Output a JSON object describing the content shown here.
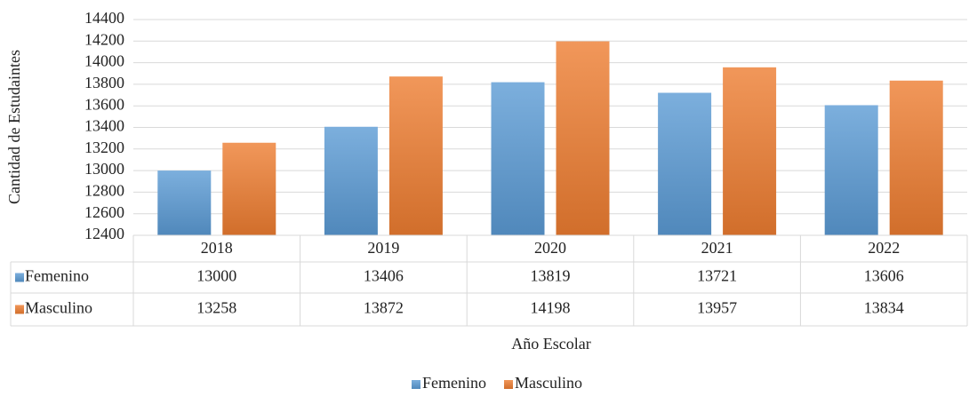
{
  "chart_data": {
    "type": "bar",
    "y_label": "Cantidad de Estudaintes",
    "x_label": "Año Escolar",
    "categories": [
      "2018",
      "2019",
      "2020",
      "2021",
      "2022"
    ],
    "series": [
      {
        "name": "Femenino",
        "color": "#5b9bd5",
        "values": [
          13000,
          13406,
          13819,
          13721,
          13606
        ]
      },
      {
        "name": "Masculino",
        "color": "#ed7d31",
        "values": [
          13258,
          13872,
          14198,
          13957,
          13834
        ]
      }
    ],
    "ylim": [
      12400,
      14400
    ],
    "yticks": [
      12400,
      12600,
      12800,
      13000,
      13200,
      13400,
      13600,
      13800,
      14000,
      14200,
      14400
    ],
    "grid": true,
    "data_table": true,
    "legend": "bottom"
  }
}
